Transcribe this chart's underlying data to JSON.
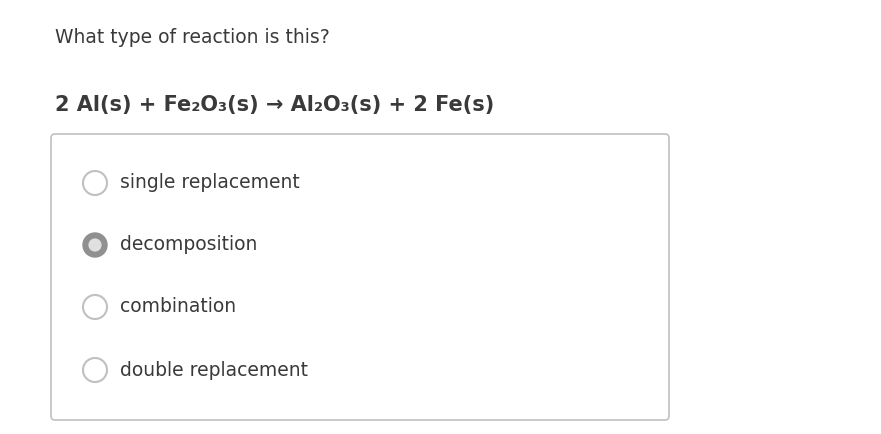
{
  "title": "What type of reaction is this?",
  "equation": "2 Al(s) + Fe₂O₃(s) → Al₂O₃(s) + 2 Fe(s)",
  "options": [
    {
      "label": "single replacement",
      "selected": false
    },
    {
      "label": "decomposition",
      "selected": true
    },
    {
      "label": "combination",
      "selected": false
    },
    {
      "label": "double replacement",
      "selected": false
    }
  ],
  "background_color": "#ffffff",
  "text_color": "#3a3a3a",
  "box_edge_color": "#c0c0c0",
  "radio_unselected_edge": "#c0c0c0",
  "radio_selected_fill": "#909090",
  "radio_selected_inner": "#e0e0e0",
  "title_fontsize": 13.5,
  "equation_fontsize": 15,
  "option_fontsize": 13.5
}
